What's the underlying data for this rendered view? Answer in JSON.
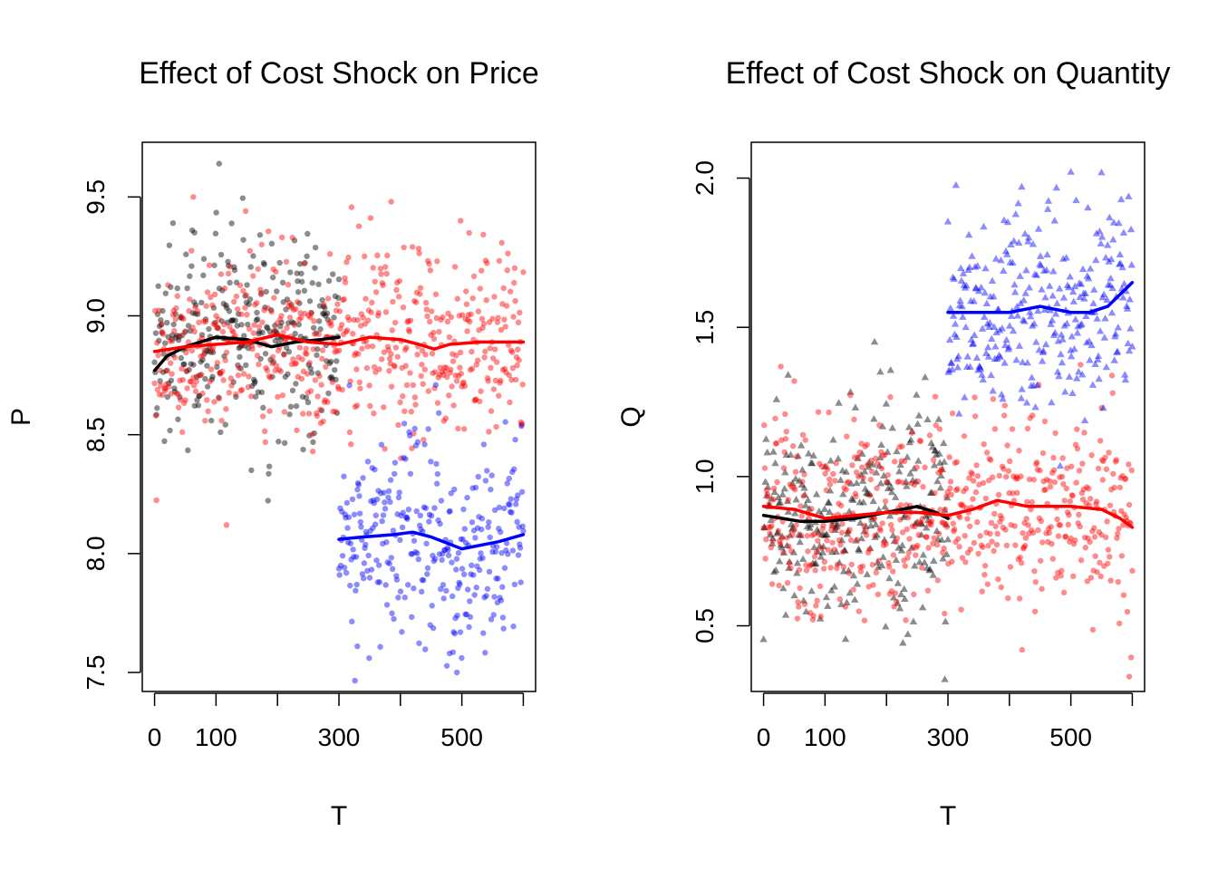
{
  "colors": {
    "black": "#000000",
    "red": "#ff0000",
    "blue": "#0000ff"
  },
  "chart_data": [
    {
      "type": "scatter",
      "title": "Effect of Cost Shock on Price",
      "xlabel": "T",
      "ylabel": "P",
      "xlim": [
        -20,
        620
      ],
      "ylim": [
        7.42,
        9.73
      ],
      "xticks": [
        0,
        100,
        200,
        300,
        400,
        500,
        600
      ],
      "xtick_labels": [
        "0",
        "100",
        "",
        "300",
        "",
        "500",
        ""
      ],
      "yticks": [
        7.5,
        8.0,
        8.5,
        9.0,
        9.5
      ],
      "ytick_labels": [
        "7.5",
        "8.0",
        "8.5",
        "9.0",
        "9.5"
      ],
      "grid": false,
      "marker": "circle",
      "series": [
        {
          "color": "black",
          "x_range": [
            0,
            300
          ],
          "point_count": 300,
          "mean": 8.88,
          "sd": 0.2,
          "outliers": [
            {
              "x": 105,
              "y": 9.64
            },
            {
              "x": 65,
              "y": 9.35
            },
            {
              "x": 30,
              "y": 9.39
            }
          ],
          "smooth": [
            [
              0,
              8.77
            ],
            [
              20,
              8.83
            ],
            [
              50,
              8.87
            ],
            [
              100,
              8.91
            ],
            [
              150,
              8.9
            ],
            [
              190,
              8.87
            ],
            [
              230,
              8.89
            ],
            [
              270,
              8.9
            ],
            [
              300,
              8.91
            ]
          ]
        },
        {
          "color": "red",
          "x_range": [
            0,
            600
          ],
          "point_count": 600,
          "mean": 8.89,
          "sd": 0.18,
          "outliers": [
            {
              "x": 63,
              "y": 9.5
            },
            {
              "x": 385,
              "y": 9.48
            },
            {
              "x": 117,
              "y": 8.12
            },
            {
              "x": 498,
              "y": 9.4
            }
          ],
          "smooth": [
            [
              0,
              8.85
            ],
            [
              50,
              8.87
            ],
            [
              100,
              8.88
            ],
            [
              150,
              8.89
            ],
            [
              200,
              8.92
            ],
            [
              250,
              8.89
            ],
            [
              300,
              8.88
            ],
            [
              350,
              8.91
            ],
            [
              400,
              8.9
            ],
            [
              430,
              8.88
            ],
            [
              455,
              8.86
            ],
            [
              480,
              8.88
            ],
            [
              530,
              8.89
            ],
            [
              600,
              8.89
            ]
          ]
        },
        {
          "color": "blue",
          "x_range": [
            300,
            600
          ],
          "point_count": 300,
          "mean": 8.05,
          "sd": 0.22,
          "outliers": [
            {
              "x": 492,
              "y": 7.5
            },
            {
              "x": 330,
              "y": 7.61
            },
            {
              "x": 480,
              "y": 7.58
            }
          ],
          "smooth": [
            [
              300,
              8.06
            ],
            [
              340,
              8.07
            ],
            [
              390,
              8.08
            ],
            [
              420,
              8.09
            ],
            [
              450,
              8.07
            ],
            [
              480,
              8.04
            ],
            [
              500,
              8.02
            ],
            [
              520,
              8.03
            ],
            [
              560,
              8.05
            ],
            [
              600,
              8.08
            ]
          ]
        }
      ]
    },
    {
      "type": "scatter",
      "title": "Effect of Cost Shock on Quantity",
      "xlabel": "T",
      "ylabel": "Q",
      "xlim": [
        -20,
        620
      ],
      "ylim": [
        0.28,
        2.12
      ],
      "xticks": [
        0,
        100,
        200,
        300,
        400,
        500,
        600
      ],
      "xtick_labels": [
        "0",
        "100",
        "",
        "300",
        "",
        "500",
        ""
      ],
      "yticks": [
        0.5,
        1.0,
        1.5,
        2.0
      ],
      "ytick_labels": [
        "0.5",
        "1.0",
        "1.5",
        "2.0"
      ],
      "grid": false,
      "series": [
        {
          "color": "black",
          "marker": "triangle",
          "x_range": [
            0,
            300
          ],
          "point_count": 300,
          "mean": 0.87,
          "sd": 0.17,
          "outliers": [
            {
              "x": 295,
              "y": 0.32
            },
            {
              "x": 190,
              "y": 1.35
            },
            {
              "x": 40,
              "y": 1.34
            }
          ],
          "smooth": [
            [
              0,
              0.87
            ],
            [
              30,
              0.86
            ],
            [
              60,
              0.85
            ],
            [
              100,
              0.85
            ],
            [
              150,
              0.86
            ],
            [
              200,
              0.88
            ],
            [
              250,
              0.9
            ],
            [
              280,
              0.88
            ],
            [
              300,
              0.86
            ]
          ]
        },
        {
          "color": "red",
          "marker": "circle",
          "x_range": [
            0,
            600
          ],
          "point_count": 600,
          "mean": 0.88,
          "sd": 0.16,
          "outliers": [
            {
              "x": 595,
              "y": 0.33
            },
            {
              "x": 50,
              "y": 1.32
            },
            {
              "x": 550,
              "y": 1.23
            }
          ],
          "smooth": [
            [
              0,
              0.9
            ],
            [
              50,
              0.89
            ],
            [
              100,
              0.86
            ],
            [
              150,
              0.87
            ],
            [
              200,
              0.88
            ],
            [
              250,
              0.88
            ],
            [
              300,
              0.87
            ],
            [
              340,
              0.89
            ],
            [
              380,
              0.92
            ],
            [
              430,
              0.9
            ],
            [
              500,
              0.9
            ],
            [
              550,
              0.89
            ],
            [
              580,
              0.86
            ],
            [
              600,
              0.83
            ]
          ]
        },
        {
          "color": "blue",
          "marker": "triangle",
          "x_range": [
            300,
            600
          ],
          "point_count": 300,
          "mean": 1.57,
          "sd": 0.17,
          "outliers": [
            {
              "x": 500,
              "y": 2.02
            },
            {
              "x": 420,
              "y": 1.97
            }
          ],
          "smooth": [
            [
              300,
              1.55
            ],
            [
              350,
              1.55
            ],
            [
              400,
              1.55
            ],
            [
              450,
              1.57
            ],
            [
              500,
              1.55
            ],
            [
              530,
              1.55
            ],
            [
              560,
              1.57
            ],
            [
              600,
              1.65
            ]
          ]
        }
      ]
    }
  ]
}
